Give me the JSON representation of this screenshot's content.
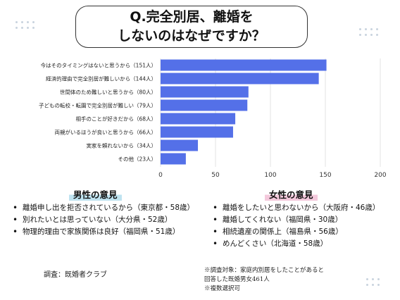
{
  "title": {
    "line1": "Q.完全別居、離婚を",
    "line2": "しないのはなぜですか？"
  },
  "chart_data": {
    "type": "bar",
    "orientation": "horizontal",
    "categories": [
      "今はそのタイミングはないと思うから（151人）",
      "経済的理由で完全別居が難しいから（144人）",
      "世間体のため難しいと思うから（80人）",
      "子どもの転校・転園で完全別居が難しい（79人）",
      "相手のことが好きだから（68人）",
      "両親がいるほうが良いと思うから（66人）",
      "実家を頼れないから（34人）",
      "その他（23人）"
    ],
    "values": [
      151,
      144,
      80,
      79,
      68,
      66,
      34,
      23
    ],
    "xlim": [
      0,
      200
    ],
    "xticks": [
      "0",
      "50",
      "100",
      "150",
      "200"
    ],
    "grid": true,
    "bar_color": "#5470e8"
  },
  "male": {
    "heading": "男性の意見",
    "items": [
      "離婚申し出を拒否されているから（東京都・58歳）",
      "別れたいとは思っていない（大分県・52歳）",
      "物理的理由で家族関係は良好（福岡県・51歳）"
    ]
  },
  "female": {
    "heading": "女性の意見",
    "items": [
      "離婚をしたいと思わないから（大阪府・46歳）",
      "離婚してくれない（福岡県・30歳）",
      "相続遺産の関係上（福島県・56歳）",
      "めんどくさい（北海道・58歳）"
    ]
  },
  "source": "調査：既婚者クラブ",
  "notes": [
    "※調査対象：家庭内別居をしたことがあると",
    "回答した既婚男女461人",
    "※複数選択可"
  ]
}
